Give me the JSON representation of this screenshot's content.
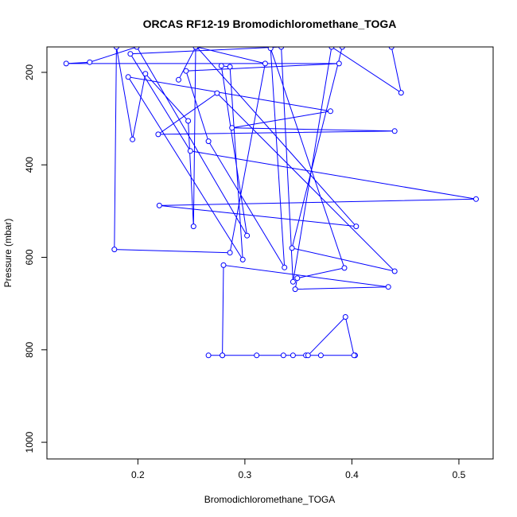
{
  "chart_data": {
    "type": "line",
    "title": "ORCAS RF12-19 Bromodichloromethane_TOGA",
    "xlabel": "Bromodichloromethane_TOGA",
    "ylabel": "Pressure (mbar)",
    "xlim": [
      0.115,
      0.532
    ],
    "ylim": [
      1036,
      145
    ],
    "y_reversed": true,
    "xticks": [
      0.2,
      0.3,
      0.4,
      0.5
    ],
    "xtick_labels": [
      "0.2",
      "0.3",
      "0.4",
      "0.5"
    ],
    "yticks": [
      200,
      400,
      600,
      800,
      1000
    ],
    "ytick_labels": [
      "200",
      "400",
      "600",
      "800",
      "1000"
    ],
    "grid": false,
    "legend": "none",
    "series": [
      {
        "color": "#0000ff",
        "marker": "open-circle",
        "points": [
          [
            0.345,
            812
          ],
          [
            0.357,
            812
          ],
          [
            0.371,
            812
          ],
          [
            0.403,
            812
          ],
          [
            0.402,
            812
          ],
          [
            0.394,
            729
          ],
          [
            0.359,
            812
          ],
          [
            0.336,
            812
          ],
          [
            0.311,
            812
          ],
          [
            0.279,
            812
          ],
          [
            0.266,
            812
          ],
          [
            0.279,
            812
          ],
          [
            0.28,
            617
          ],
          [
            0.434,
            664
          ],
          [
            0.347,
            669
          ],
          [
            0.349,
            645
          ],
          [
            0.393,
            623
          ],
          [
            0.324,
            148
          ],
          [
            0.337,
            622
          ],
          [
            0.266,
            349
          ],
          [
            0.245,
            197
          ],
          [
            0.388,
            181
          ],
          [
            0.133,
            181
          ],
          [
            0.155,
            178
          ],
          [
            0.199,
            145
          ],
          [
            0.302,
            553
          ],
          [
            0.278,
            186
          ],
          [
            0.286,
            188
          ],
          [
            0.298,
            605
          ],
          [
            0.191,
            210
          ],
          [
            0.38,
            284
          ],
          [
            0.288,
            320
          ],
          [
            0.44,
            327
          ],
          [
            0.219,
            334
          ],
          [
            0.274,
            245
          ],
          [
            0.44,
            630
          ],
          [
            0.344,
            580
          ],
          [
            0.391,
            145
          ],
          [
            0.437,
            145
          ],
          [
            0.446,
            244
          ],
          [
            0.381,
            145
          ],
          [
            0.345,
            653
          ],
          [
            0.334,
            145
          ],
          [
            0.193,
            160
          ],
          [
            0.249,
            370
          ],
          [
            0.516,
            474
          ],
          [
            0.22,
            488
          ],
          [
            0.404,
            533
          ],
          [
            0.255,
            145
          ],
          [
            0.319,
            181
          ],
          [
            0.286,
            590
          ],
          [
            0.178,
            583
          ],
          [
            0.18,
            145
          ],
          [
            0.195,
            345
          ],
          [
            0.207,
            203
          ],
          [
            0.247,
            305
          ],
          [
            0.252,
            533
          ],
          [
            0.254,
            145
          ],
          [
            0.238,
            216
          ]
        ]
      }
    ]
  }
}
